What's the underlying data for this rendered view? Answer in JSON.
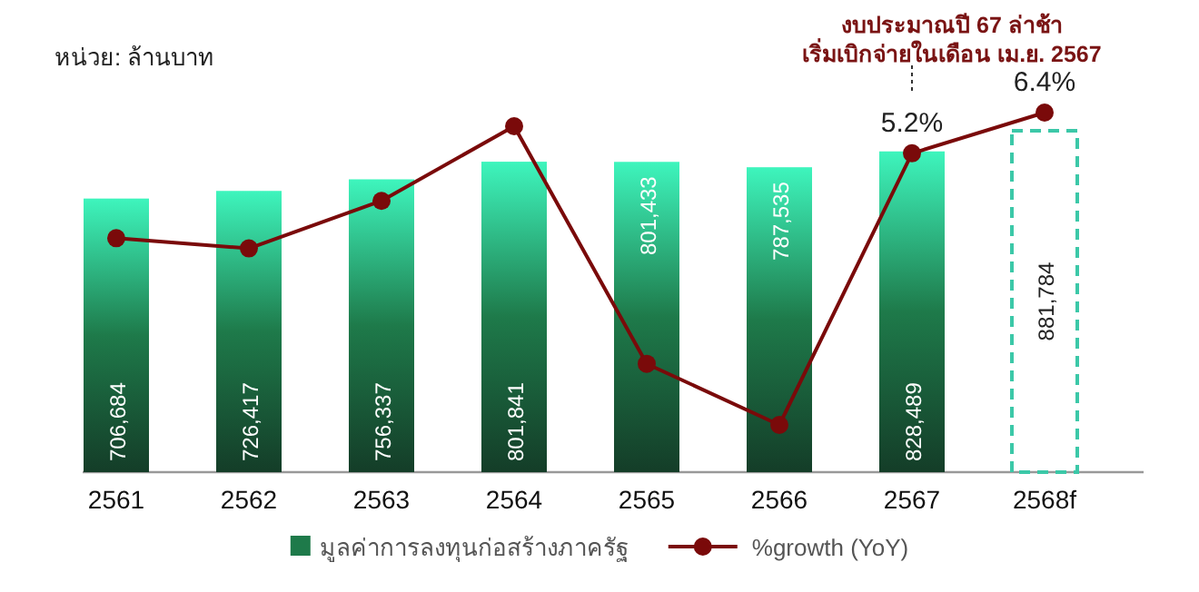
{
  "chart_data": {
    "type": "bar",
    "categories": [
      "2561",
      "2562",
      "2563",
      "2564",
      "2565",
      "2566",
      "2567",
      "2568f"
    ],
    "tick_labels": "x",
    "legend": "bottom",
    "series": [
      {
        "name": "มูลค่าการลงทุนก่อสร้างภาครัฐ",
        "color": "#1e7a4a",
        "values": [
          706684,
          726417,
          756337,
          801841,
          801433,
          787535,
          828489,
          null
        ],
        "value_labels": [
          "706,684",
          "726,417",
          "756,337",
          "801,841",
          "801,433",
          "787,535",
          "828,489",
          null
        ]
      },
      {
        "color": "#3cc8a8",
        "line_style": "dashed",
        "values": [
          null,
          null,
          null,
          null,
          null,
          null,
          null,
          881784
        ],
        "value_labels": [
          null,
          null,
          null,
          null,
          null,
          null,
          null,
          "881,784"
        ]
      },
      {
        "name": "%growth (YoY)",
        "type": "line",
        "axis": "y2",
        "marker": "circle",
        "color": "#7a0a0a",
        "values": [
          2.7,
          2.4,
          3.8,
          6.0,
          -1.0,
          -2.8,
          5.2,
          6.4
        ],
        "value_labels": [
          null,
          null,
          null,
          null,
          null,
          null,
          "5.2%",
          "6.4%"
        ]
      }
    ],
    "annotations": [
      "หน่วย: ล้านบาท",
      "งบประมาณปี 67 ล่าช้า\nเริ่มเบิกจ่ายในเดือน เม.ย. 2567"
    ]
  }
}
